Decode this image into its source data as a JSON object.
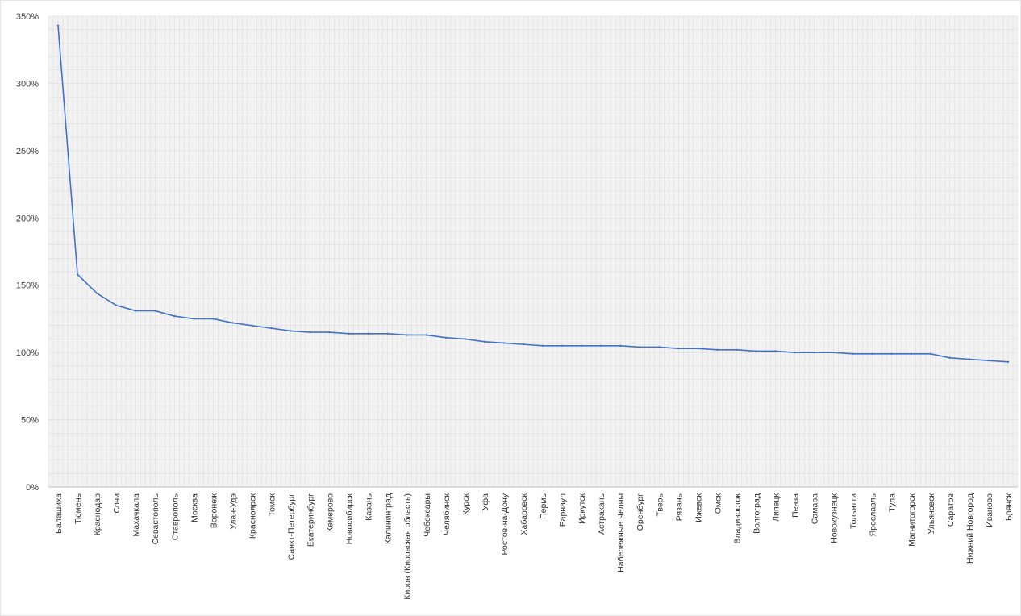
{
  "chart_data": {
    "type": "line",
    "title": "",
    "xlabel": "",
    "ylabel": "",
    "ylim": [
      0,
      3.5
    ],
    "y_tick_labels": [
      "0%",
      "50%",
      "100%",
      "150%",
      "200%",
      "250%",
      "300%",
      "350%"
    ],
    "y_tick_values": [
      0,
      0.5,
      1.0,
      1.5,
      2.0,
      2.5,
      3.0,
      3.5
    ],
    "grid": true,
    "legend": "none",
    "colors": {
      "line": "#4472c4",
      "plot_background": "#f2f2f2",
      "grid": "#d9d9d9",
      "axis": "#bfbfbf"
    },
    "categories": [
      "Балашиха",
      "Тюмень",
      "Краснодар",
      "Сочи",
      "Махачкала",
      "Севастополь",
      "Ставрополь",
      "Москва",
      "Воронеж",
      "Улан-Удэ",
      "Красноярск",
      "Томск",
      "Санкт-Петербург",
      "Екатеринбург",
      "Кемерово",
      "Новосибирск",
      "Казань",
      "Калининград",
      "Киров (Кировская область)",
      "Чебоксары",
      "Челябинск",
      "Курск",
      "Уфа",
      "Ростов-на-Дону",
      "Хабаровск",
      "Пермь",
      "Барнаул",
      "Иркутск",
      "Астрахань",
      "Набережные Челны",
      "Оренбург",
      "Тверь",
      "Рязань",
      "Ижевск",
      "Омск",
      "Владивосток",
      "Волгоград",
      "Липецк",
      "Пенза",
      "Самара",
      "Новокузнецк",
      "Тольятти",
      "Ярославль",
      "Тула",
      "Магнитогорск",
      "Ульяновск",
      "Саратов",
      "Нижний Новгород",
      "Иваново",
      "Брянск"
    ],
    "values": [
      3.43,
      1.58,
      1.44,
      1.35,
      1.31,
      1.31,
      1.27,
      1.25,
      1.25,
      1.22,
      1.2,
      1.18,
      1.16,
      1.15,
      1.15,
      1.14,
      1.14,
      1.14,
      1.13,
      1.13,
      1.11,
      1.1,
      1.08,
      1.07,
      1.06,
      1.05,
      1.05,
      1.05,
      1.05,
      1.05,
      1.04,
      1.04,
      1.03,
      1.03,
      1.02,
      1.02,
      1.01,
      1.01,
      1.0,
      1.0,
      1.0,
      0.99,
      0.99,
      0.99,
      0.99,
      0.99,
      0.96,
      0.95,
      0.94,
      0.93
    ]
  }
}
